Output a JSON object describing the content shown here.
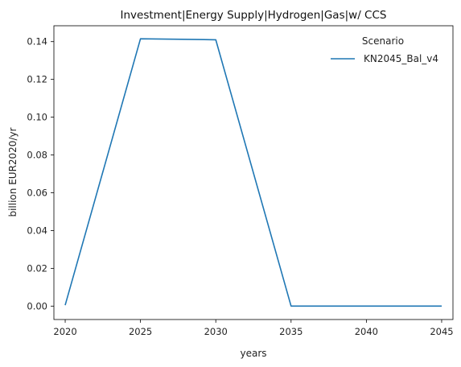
{
  "chart_data": {
    "type": "line",
    "title": "Investment|Energy Supply|Hydrogen|Gas|w/ CCS",
    "xlabel": "years",
    "ylabel": "billion EUR2020/yr",
    "x": [
      2020,
      2025,
      2030,
      2035,
      2040,
      2045
    ],
    "xticks": [
      "2020",
      "2025",
      "2030",
      "2035",
      "2040",
      "2045"
    ],
    "yticks": [
      "0.00",
      "0.02",
      "0.04",
      "0.06",
      "0.08",
      "0.10",
      "0.12",
      "0.14"
    ],
    "ytick_values": [
      0.0,
      0.02,
      0.04,
      0.06,
      0.08,
      0.1,
      0.12,
      0.14
    ],
    "xlim": [
      2019.25,
      2045.75
    ],
    "ylim": [
      -0.0071,
      0.1484
    ],
    "grid": false,
    "legend": {
      "title": "Scenario",
      "placement": "top-right"
    },
    "series": [
      {
        "name": "KN2045_Bal_v4",
        "color": "#1f77b4",
        "values": [
          0.0005,
          0.1415,
          0.141,
          0.0,
          0.0,
          0.0
        ]
      }
    ]
  }
}
